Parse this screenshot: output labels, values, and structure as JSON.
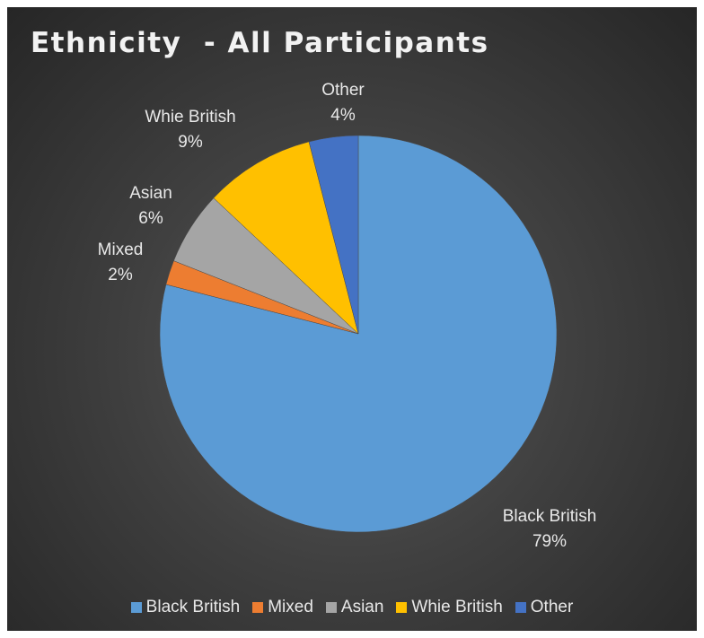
{
  "chart_data": {
    "type": "pie",
    "title": "Ethnicity  - All Participants",
    "legend_position": "bottom",
    "start_angle": "top",
    "direction": "clockwise",
    "slices": [
      {
        "name": "Black British",
        "value": 79,
        "label": "79%",
        "color": "#5b9bd5"
      },
      {
        "name": "Mixed",
        "value": 2,
        "label": "2%",
        "color": "#ed7d31"
      },
      {
        "name": "Asian",
        "value": 6,
        "label": "6%",
        "color": "#a5a5a5"
      },
      {
        "name": "Whie British",
        "value": 9,
        "label": "9%",
        "color": "#ffc000"
      },
      {
        "name": "Other",
        "value": 4,
        "label": "4%",
        "color": "#4472c4"
      }
    ]
  }
}
